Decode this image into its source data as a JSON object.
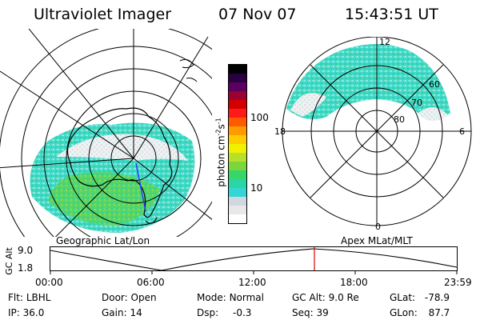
{
  "header": {
    "title": "Ultraviolet Imager",
    "date": "07 Nov 07",
    "time": "15:43:51 UT"
  },
  "colorbar": {
    "unit": "photon cm",
    "unit_exp1": "-2",
    "unit_s": "s",
    "unit_exp2": "-1",
    "ticks": [
      "100",
      "10"
    ],
    "colors": [
      "#ffffff",
      "#e8e8e8",
      "#cfd8e0",
      "#33d6d6",
      "#2ad6a6",
      "#36d66a",
      "#7ad63a",
      "#b8e02a",
      "#f0f000",
      "#ffcc00",
      "#ff9a00",
      "#ff5a00",
      "#ff1a1a",
      "#d40000",
      "#9a0030",
      "#5a0060",
      "#2a0040",
      "#000000"
    ]
  },
  "left_map": {
    "caption": "Geographic Lat/Lon"
  },
  "right_map": {
    "caption": "Apex MLat/MLT",
    "hour_labels": {
      "top": "12",
      "left": "18",
      "right": "6",
      "bottom": "0"
    },
    "lat_labels": [
      "60",
      "70",
      "80"
    ]
  },
  "altitude_plot": {
    "ylabel": "GC Alt",
    "yticks": [
      "9.0",
      "1.8"
    ],
    "xticks": [
      "00:00",
      "06:00",
      "12:00",
      "18:00",
      "23:59"
    ],
    "marker_color": "#e00000"
  },
  "info": {
    "row1": [
      {
        "label": "Flt:",
        "value": "LBHL"
      },
      {
        "label": "Door:",
        "value": "Open"
      },
      {
        "label": "Mode:",
        "value": "Normal"
      },
      {
        "label": "GC Alt:",
        "value": "9.0 Re"
      },
      {
        "label": "GLat:",
        "value": "-78.9"
      }
    ],
    "row2": [
      {
        "label": "IP:",
        "value": "36.0"
      },
      {
        "label": "Gain:",
        "value": "14"
      },
      {
        "label": "Dsp:",
        "value": "-0.3"
      },
      {
        "label": "Seq:",
        "value": "39"
      },
      {
        "label": "GLon:",
        "value": "87.7"
      }
    ]
  }
}
